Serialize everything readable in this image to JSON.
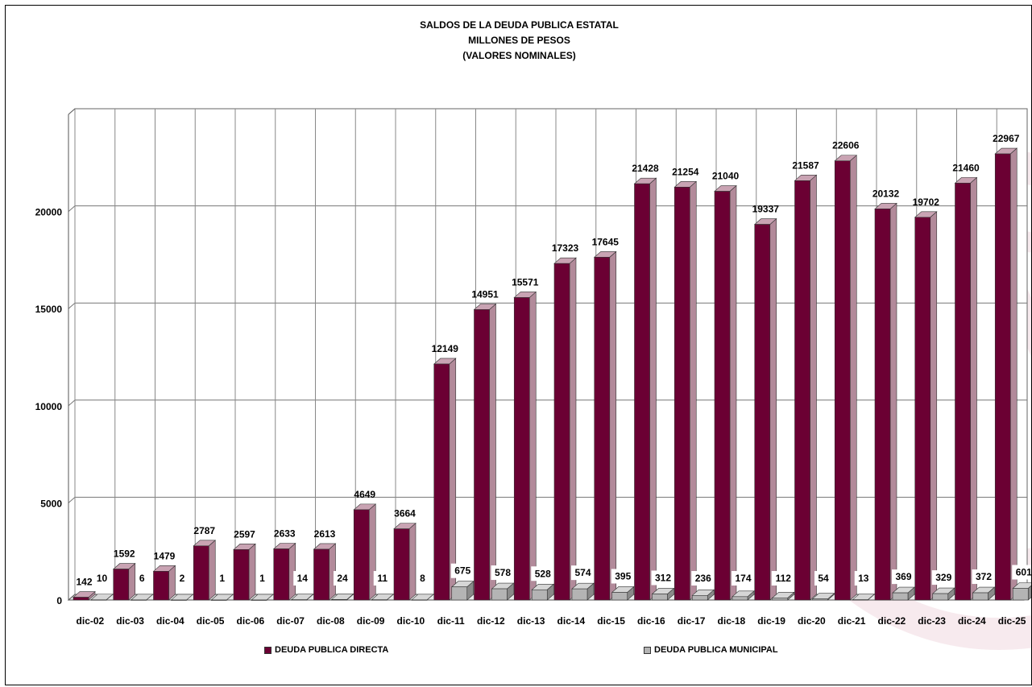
{
  "chart_data": {
    "type": "bar",
    "title": "SALDOS DE LA DEUDA PUBLICA ESTATAL",
    "subtitle": [
      "MILLONES DE PESOS",
      "(VALORES NOMINALES)"
    ],
    "categories": [
      "dic-02",
      "dic-03",
      "dic-04",
      "dic-05",
      "dic-06",
      "dic-07",
      "dic-08",
      "dic-09",
      "dic-10",
      "dic-11",
      "dic-12",
      "dic-13",
      "dic-14",
      "dic-15",
      "dic-16",
      "dic-17",
      "dic-18",
      "dic-19",
      "dic-20",
      "dic-21",
      "dic-22",
      "dic-23",
      "dic-24",
      "dic-25"
    ],
    "series": [
      {
        "name": "DEUDA PUBLICA DIRECTA",
        "values": [
          142,
          1592,
          1479,
          2787,
          2597,
          2633,
          2613,
          4649,
          3664,
          12149,
          14951,
          15571,
          17323,
          17645,
          21428,
          21254,
          21040,
          19337,
          21587,
          22606,
          20132,
          19702,
          21460,
          22967
        ]
      },
      {
        "name": "DEUDA PUBLICA MUNICIPAL",
        "values": [
          10,
          6,
          2,
          1,
          1,
          14,
          24,
          11,
          8,
          675,
          578,
          528,
          574,
          395,
          312,
          236,
          174,
          112,
          54,
          13,
          369,
          329,
          372,
          601
        ]
      }
    ],
    "yticks": [
      0,
      5000,
      10000,
      15000,
      20000
    ],
    "ylim": [
      0,
      25000
    ],
    "grid": true,
    "legend_position": "bottom",
    "colors": {
      "directa": "#6b0033",
      "municipal": "#b4b4b4"
    }
  }
}
